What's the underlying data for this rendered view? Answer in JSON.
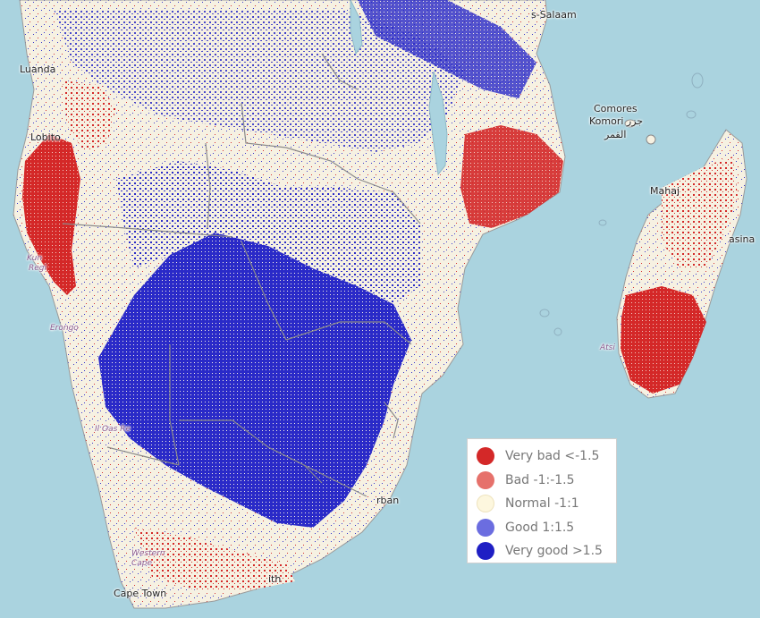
{
  "map": {
    "places": [
      {
        "id": "luanda",
        "label": "Luanda"
      },
      {
        "id": "lobito",
        "label": "Lobito"
      },
      {
        "id": "dar-es-salaam",
        "label": "s-Salaam"
      },
      {
        "id": "comores",
        "label": "Comores"
      },
      {
        "id": "komori",
        "label": "Komori جزر"
      },
      {
        "id": "comores-ar",
        "label": "القمر"
      },
      {
        "id": "mahajanga",
        "label": "Mahaj"
      },
      {
        "id": "toamasina",
        "label": "asina"
      },
      {
        "id": "kunene",
        "label": "Kun"
      },
      {
        "id": "kunene-region",
        "label": "Regi"
      },
      {
        "id": "erongo",
        "label": "Erongo"
      },
      {
        "id": "hardap",
        "label": "Il Oas Re"
      },
      {
        "id": "atsimo",
        "label": "Atsi"
      },
      {
        "id": "durban",
        "label": "rban"
      },
      {
        "id": "western-cape",
        "label": "Western Cape"
      },
      {
        "id": "cape-town",
        "label": "Cape Town"
      },
      {
        "id": "port-elizabeth",
        "label": "ith"
      }
    ]
  },
  "legend": {
    "items": [
      {
        "label": "Very bad <-1.5",
        "color": "#d42828"
      },
      {
        "label": "Bad -1:-1.5",
        "color": "#e6716b"
      },
      {
        "label": "Normal -1:1",
        "color": "#fdf7de"
      },
      {
        "label": "Good 1:1.5",
        "color": "#6b6de0"
      },
      {
        "label": "Very good >1.5",
        "color": "#1f1fc4"
      }
    ]
  },
  "colors": {
    "sea": "#aad3df",
    "land": "#f6f1e2",
    "border": "#8a8a8a",
    "lake": "#aad3df"
  }
}
